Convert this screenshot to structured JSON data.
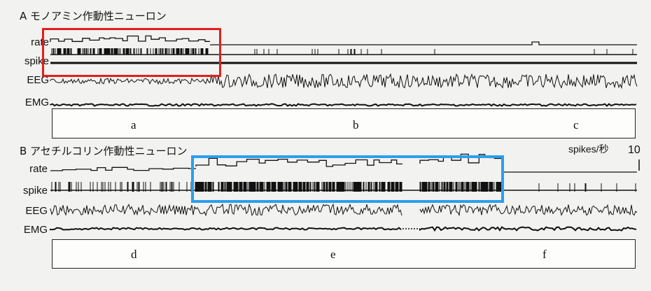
{
  "panels": {
    "a": {
      "title": "A モノアミン作動性ニューロン",
      "traces": [
        "rate",
        "spike",
        "EEG",
        "EMG"
      ],
      "stages": [
        "a",
        "b",
        "c"
      ]
    },
    "b": {
      "title": "B アセチルコリン作動性ニューロン",
      "traces": [
        "rate",
        "spike",
        "EEG",
        "EMG"
      ],
      "stages": [
        "d",
        "e",
        "f"
      ],
      "scale_label": "spikes/秒",
      "scale_value": "10"
    }
  },
  "colors": {
    "red_highlight": "#e02020",
    "blue_highlight": "#2a9ff0",
    "trace": "#111111"
  }
}
